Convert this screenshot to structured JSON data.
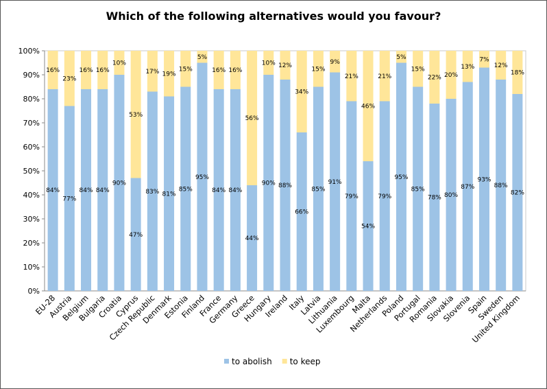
{
  "chart_data": {
    "type": "bar",
    "stacked": true,
    "title": "Which of the following alternatives would you favour?",
    "xlabel": "",
    "ylabel": "",
    "ylim": [
      0,
      100
    ],
    "yticks": [
      "0%",
      "10%",
      "20%",
      "30%",
      "40%",
      "50%",
      "60%",
      "70%",
      "80%",
      "90%",
      "100%"
    ],
    "grid": false,
    "legend_position": "bottom",
    "categories": [
      "EU-28",
      "Austria",
      "Belgium",
      "Bulgaria",
      "Croatia",
      "Cyprus",
      "Czech Republic",
      "Denmark",
      "Estonia",
      "Finland",
      "France",
      "Germany",
      "Greece",
      "Hungary",
      "Ireland",
      "Italy",
      "Latvia",
      "Lithuania",
      "Luxembourg",
      "Malta",
      "Netherlands",
      "Poland",
      "Portugal",
      "Romania",
      "Slovakia",
      "Slovenia",
      "Spain",
      "Sweden",
      "United Kingdom"
    ],
    "series": [
      {
        "name": "to abolish",
        "color": "#9dc3e6",
        "values": [
          84,
          77,
          84,
          84,
          90,
          47,
          83,
          81,
          85,
          95,
          84,
          84,
          44,
          90,
          88,
          66,
          85,
          91,
          79,
          54,
          79,
          95,
          85,
          78,
          80,
          87,
          93,
          88,
          82
        ]
      },
      {
        "name": "to keep",
        "color": "#ffe699",
        "values": [
          16,
          23,
          16,
          16,
          10,
          53,
          17,
          19,
          15,
          5,
          16,
          16,
          56,
          10,
          12,
          34,
          15,
          9,
          21,
          46,
          21,
          5,
          15,
          22,
          20,
          13,
          7,
          12,
          18
        ]
      }
    ]
  }
}
